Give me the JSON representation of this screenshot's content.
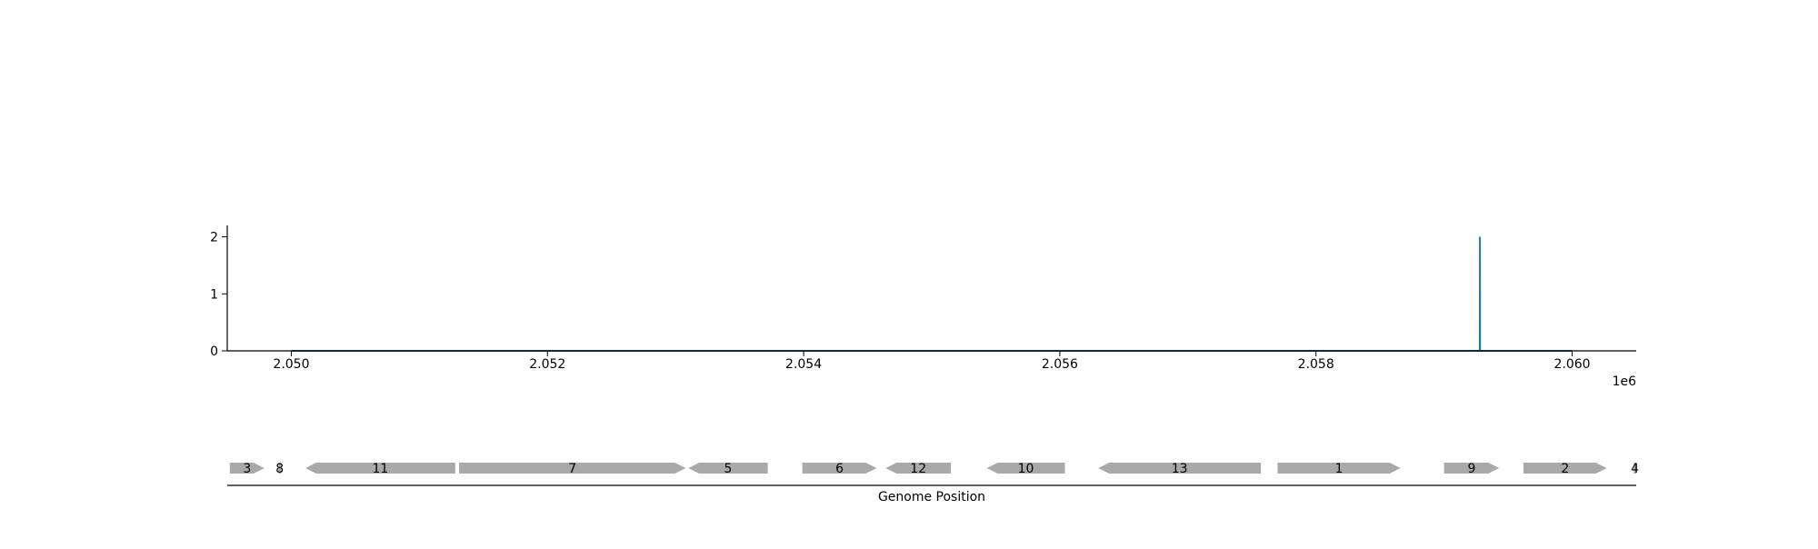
{
  "chart_data": [
    {
      "type": "line",
      "x_range": [
        2049500,
        2060500
      ],
      "ylim": [
        0,
        2.2
      ],
      "x_ticks": [
        2050000,
        2052000,
        2054000,
        2056000,
        2058000,
        2060000
      ],
      "x_tick_labels": [
        "2.050",
        "2.052",
        "2.054",
        "2.056",
        "2.058",
        "2.060"
      ],
      "x_offset_label": "1e6",
      "y_ticks": [
        0,
        1,
        2
      ],
      "y_tick_labels": [
        "0",
        "1",
        "2"
      ],
      "grid": false,
      "series": [
        {
          "color": "#1f77b4",
          "x": [
            2050000,
            2059279,
            2059280,
            2059281,
            2060000
          ],
          "y": [
            0,
            0,
            2,
            0,
            0
          ]
        }
      ]
    },
    {
      "type": "gene_map",
      "xlabel": "Genome Position",
      "x_range": [
        2049500,
        2060500
      ],
      "feature_color": "#a9a9a9",
      "features": [
        {
          "label": "3",
          "start": 2049520,
          "end": 2049790,
          "strand": "+"
        },
        {
          "label": "8",
          "start": 2049900,
          "end": 2049920,
          "strand": "+"
        },
        {
          "label": "11",
          "start": 2050110,
          "end": 2051280,
          "strand": "-"
        },
        {
          "label": "7",
          "start": 2051310,
          "end": 2053080,
          "strand": "+"
        },
        {
          "label": "5",
          "start": 2053100,
          "end": 2053720,
          "strand": "-"
        },
        {
          "label": "6",
          "start": 2053990,
          "end": 2054570,
          "strand": "+"
        },
        {
          "label": "12",
          "start": 2054640,
          "end": 2055150,
          "strand": "-"
        },
        {
          "label": "10",
          "start": 2055430,
          "end": 2056040,
          "strand": "-"
        },
        {
          "label": "13",
          "start": 2056300,
          "end": 2057570,
          "strand": "-"
        },
        {
          "label": "1",
          "start": 2057700,
          "end": 2058660,
          "strand": "+"
        },
        {
          "label": "9",
          "start": 2059000,
          "end": 2059430,
          "strand": "+"
        },
        {
          "label": "2",
          "start": 2059620,
          "end": 2060270,
          "strand": "+"
        },
        {
          "label": "4",
          "start": 2060480,
          "end": 2060500,
          "strand": "+"
        }
      ]
    }
  ]
}
